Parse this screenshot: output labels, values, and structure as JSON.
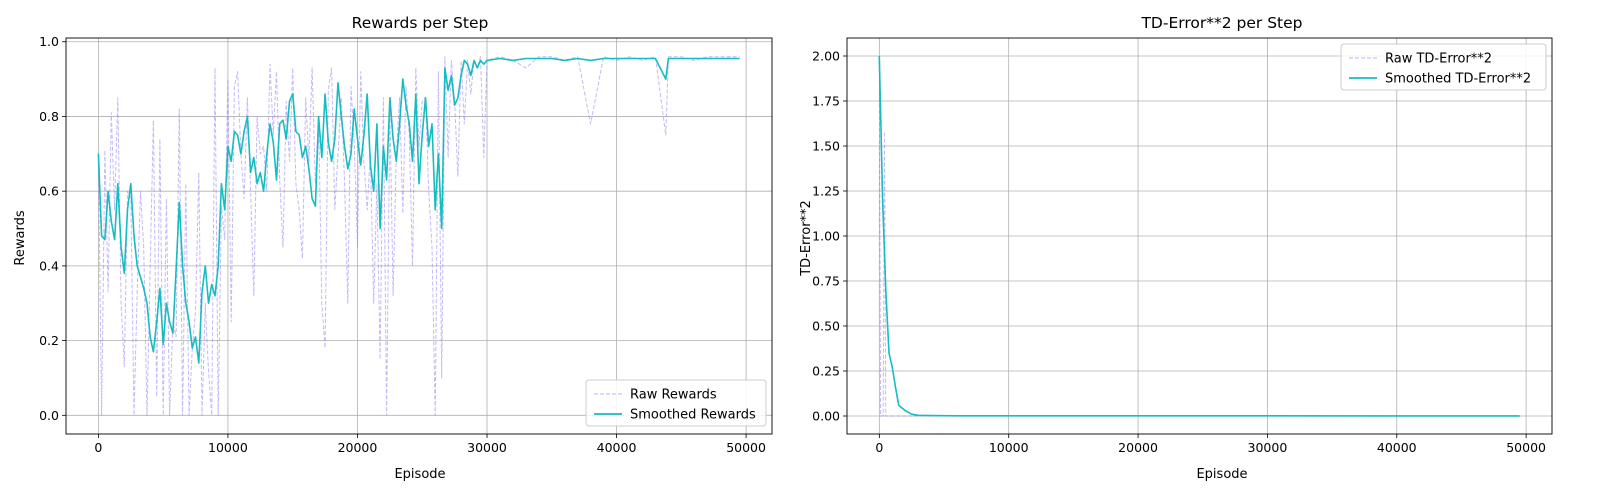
{
  "colors": {
    "raw": "#8f7ff0",
    "smoothed": "#17bcc0",
    "grid": "#b0b0b0",
    "axes": "#000000"
  },
  "chart_data": [
    {
      "type": "line",
      "title": "Rewards per Step",
      "xlabel": "Episode",
      "ylabel": "Rewards",
      "xlim": [
        -2500,
        52000
      ],
      "ylim": [
        -0.05,
        1.01
      ],
      "xticks": [
        0,
        10000,
        20000,
        30000,
        40000,
        50000
      ],
      "xtick_labels": [
        "0",
        "10000",
        "20000",
        "30000",
        "40000",
        "50000"
      ],
      "yticks": [
        0.0,
        0.2,
        0.4,
        0.6,
        0.8,
        1.0
      ],
      "ytick_labels": [
        "0.0",
        "0.2",
        "0.4",
        "0.6",
        "0.8",
        "1.0"
      ],
      "grid": true,
      "legend_position": "lower-right",
      "series": [
        {
          "name": "Raw Rewards",
          "style": "dashed",
          "x": [
            0,
            250,
            500,
            750,
            1000,
            1250,
            1500,
            1750,
            2000,
            2250,
            2500,
            2750,
            3000,
            3250,
            3500,
            3750,
            4000,
            4250,
            4500,
            4750,
            5000,
            5250,
            5500,
            5750,
            6000,
            6250,
            6500,
            6750,
            7000,
            7250,
            7500,
            7750,
            8000,
            8250,
            8500,
            8750,
            9000,
            9250,
            9500,
            9750,
            10000,
            10250,
            10500,
            10750,
            11000,
            11250,
            11500,
            11750,
            12000,
            12250,
            12500,
            12750,
            13000,
            13250,
            13500,
            13750,
            14000,
            14250,
            14500,
            14750,
            15000,
            15250,
            15500,
            15750,
            16000,
            16250,
            16500,
            16750,
            17000,
            17250,
            17500,
            17750,
            18000,
            18250,
            18500,
            18750,
            19000,
            19250,
            19500,
            19750,
            20000,
            20250,
            20500,
            20750,
            21000,
            21250,
            21500,
            21750,
            22000,
            22250,
            22500,
            22750,
            23000,
            23250,
            23500,
            23750,
            24000,
            24250,
            24500,
            24750,
            25000,
            25250,
            25500,
            25750,
            26000,
            26250,
            26500,
            26750,
            27000,
            27250,
            27500,
            27750,
            28000,
            28250,
            28500,
            28750,
            29000,
            29250,
            29500,
            29750,
            30000,
            31000,
            32000,
            33000,
            34000,
            35000,
            36000,
            37000,
            38000,
            39000,
            40000,
            41000,
            42000,
            43000,
            43800,
            44000,
            45000,
            46000,
            47000,
            48000,
            49000,
            49500
          ],
          "y": [
            0.7,
            0.0,
            0.71,
            0.33,
            0.81,
            0.55,
            0.85,
            0.3,
            0.13,
            0.6,
            0.58,
            0.0,
            0.33,
            0.6,
            0.45,
            0.0,
            0.4,
            0.79,
            0.05,
            0.74,
            0.0,
            0.58,
            0.0,
            0.25,
            0.21,
            0.82,
            0.0,
            0.62,
            0.0,
            0.18,
            0.28,
            0.65,
            0.0,
            0.3,
            0.12,
            0.0,
            0.93,
            0.0,
            0.56,
            0.47,
            0.9,
            0.25,
            0.88,
            0.92,
            0.7,
            0.58,
            0.85,
            0.6,
            0.32,
            0.8,
            0.7,
            0.72,
            0.6,
            0.94,
            0.75,
            0.92,
            0.63,
            0.45,
            0.84,
            0.68,
            0.93,
            0.62,
            0.55,
            0.42,
            0.85,
            0.68,
            0.93,
            0.62,
            0.8,
            0.3,
            0.18,
            0.87,
            0.93,
            0.55,
            0.7,
            0.85,
            0.63,
            0.3,
            0.88,
            0.73,
            0.45,
            0.92,
            0.68,
            0.55,
            0.7,
            0.3,
            0.62,
            0.15,
            0.85,
            0.0,
            0.82,
            0.32,
            0.7,
            0.85,
            0.54,
            0.88,
            0.75,
            0.4,
            0.93,
            0.72,
            0.84,
            0.85,
            0.6,
            0.45,
            0.0,
            0.92,
            0.1,
            0.96,
            0.69,
            0.95,
            0.84,
            0.64,
            0.95,
            0.78,
            0.95,
            0.86,
            0.95,
            0.93,
            0.96,
            0.69,
            0.95,
            0.96,
            0.95,
            0.93,
            0.96,
            0.96,
            0.95,
            0.96,
            0.78,
            0.96,
            0.95,
            0.96,
            0.95,
            0.96,
            0.75,
            0.96,
            0.96,
            0.95,
            0.96,
            0.96,
            0.96,
            0.96
          ]
        },
        {
          "name": "Smoothed Rewards",
          "style": "solid",
          "x": [
            0,
            250,
            500,
            750,
            1000,
            1250,
            1500,
            1750,
            2000,
            2250,
            2500,
            2750,
            3000,
            3250,
            3500,
            3750,
            4000,
            4250,
            4500,
            4750,
            5000,
            5250,
            5500,
            5750,
            6000,
            6250,
            6500,
            6750,
            7000,
            7250,
            7500,
            7750,
            8000,
            8250,
            8500,
            8750,
            9000,
            9250,
            9500,
            9750,
            10000,
            10250,
            10500,
            10750,
            11000,
            11250,
            11500,
            11750,
            12000,
            12250,
            12500,
            12750,
            13000,
            13250,
            13500,
            13750,
            14000,
            14250,
            14500,
            14750,
            15000,
            15250,
            15500,
            15750,
            16000,
            16250,
            16500,
            16750,
            17000,
            17250,
            17500,
            17750,
            18000,
            18250,
            18500,
            18750,
            19000,
            19250,
            19500,
            19750,
            20000,
            20250,
            20500,
            20750,
            21000,
            21250,
            21500,
            21750,
            22000,
            22250,
            22500,
            22750,
            23000,
            23250,
            23500,
            23750,
            24000,
            24250,
            24500,
            24750,
            25000,
            25250,
            25500,
            25750,
            26000,
            26250,
            26500,
            26750,
            27000,
            27250,
            27500,
            27750,
            28000,
            28250,
            28500,
            28750,
            29000,
            29250,
            29500,
            29750,
            30000,
            31000,
            32000,
            33000,
            34000,
            35000,
            36000,
            37000,
            38000,
            39000,
            40000,
            41000,
            42000,
            43000,
            43800,
            44000,
            45000,
            46000,
            47000,
            48000,
            49000,
            49500
          ],
          "y": [
            0.7,
            0.48,
            0.47,
            0.6,
            0.52,
            0.47,
            0.62,
            0.45,
            0.38,
            0.55,
            0.62,
            0.48,
            0.4,
            0.37,
            0.34,
            0.3,
            0.21,
            0.17,
            0.25,
            0.34,
            0.19,
            0.3,
            0.25,
            0.22,
            0.39,
            0.57,
            0.4,
            0.3,
            0.25,
            0.18,
            0.21,
            0.14,
            0.33,
            0.4,
            0.3,
            0.35,
            0.32,
            0.4,
            0.62,
            0.55,
            0.72,
            0.68,
            0.76,
            0.75,
            0.7,
            0.76,
            0.8,
            0.65,
            0.69,
            0.62,
            0.65,
            0.6,
            0.7,
            0.78,
            0.73,
            0.63,
            0.78,
            0.79,
            0.74,
            0.84,
            0.86,
            0.76,
            0.75,
            0.69,
            0.72,
            0.66,
            0.58,
            0.56,
            0.8,
            0.69,
            0.86,
            0.73,
            0.68,
            0.74,
            0.89,
            0.8,
            0.72,
            0.66,
            0.7,
            0.82,
            0.74,
            0.67,
            0.75,
            0.86,
            0.67,
            0.6,
            0.78,
            0.5,
            0.72,
            0.63,
            0.85,
            0.74,
            0.68,
            0.78,
            0.9,
            0.83,
            0.78,
            0.68,
            0.86,
            0.62,
            0.75,
            0.85,
            0.72,
            0.78,
            0.55,
            0.7,
            0.5,
            0.93,
            0.87,
            0.91,
            0.83,
            0.85,
            0.91,
            0.95,
            0.94,
            0.91,
            0.95,
            0.93,
            0.95,
            0.94,
            0.95,
            0.955,
            0.95,
            0.955,
            0.955,
            0.955,
            0.95,
            0.955,
            0.95,
            0.955,
            0.955,
            0.955,
            0.955,
            0.955,
            0.9,
            0.955,
            0.955,
            0.955,
            0.955,
            0.955,
            0.955,
            0.955
          ]
        }
      ]
    },
    {
      "type": "line",
      "title": "TD-Error**2 per Step",
      "xlabel": "Episode",
      "ylabel": "TD-Error**2",
      "xlim": [
        -2500,
        52000
      ],
      "ylim": [
        -0.1,
        2.1
      ],
      "xticks": [
        0,
        10000,
        20000,
        30000,
        40000,
        50000
      ],
      "xtick_labels": [
        "0",
        "10000",
        "20000",
        "30000",
        "40000",
        "50000"
      ],
      "yticks": [
        0.0,
        0.25,
        0.5,
        0.75,
        1.0,
        1.25,
        1.5,
        1.75,
        2.0
      ],
      "ytick_labels": [
        "0.00",
        "0.25",
        "0.50",
        "0.75",
        "1.00",
        "1.25",
        "1.50",
        "1.75",
        "2.00"
      ],
      "grid": true,
      "legend_position": "top-right",
      "series": [
        {
          "name": "Raw TD-Error**2",
          "style": "dashed",
          "x": [
            0,
            100,
            200,
            300,
            400,
            500,
            1000,
            2000,
            5000,
            10000,
            20000,
            30000,
            40000,
            49500
          ],
          "y": [
            2.0,
            0.0,
            0.0,
            0.0,
            1.58,
            0.0,
            0.0,
            0.0,
            0.0,
            0.0,
            0.0,
            0.0,
            0.0,
            0.0
          ]
        },
        {
          "name": "Smoothed TD-Error**2",
          "style": "solid",
          "x": [
            0,
            250,
            500,
            750,
            1000,
            1250,
            1500,
            2000,
            2500,
            3000,
            4000,
            6000,
            10000,
            20000,
            30000,
            40000,
            49500
          ],
          "y": [
            2.0,
            1.2,
            0.7,
            0.35,
            0.27,
            0.16,
            0.06,
            0.03,
            0.01,
            0.004,
            0.002,
            0.001,
            0.001,
            0.001,
            0.001,
            0.0005,
            0.0005
          ]
        }
      ]
    }
  ]
}
